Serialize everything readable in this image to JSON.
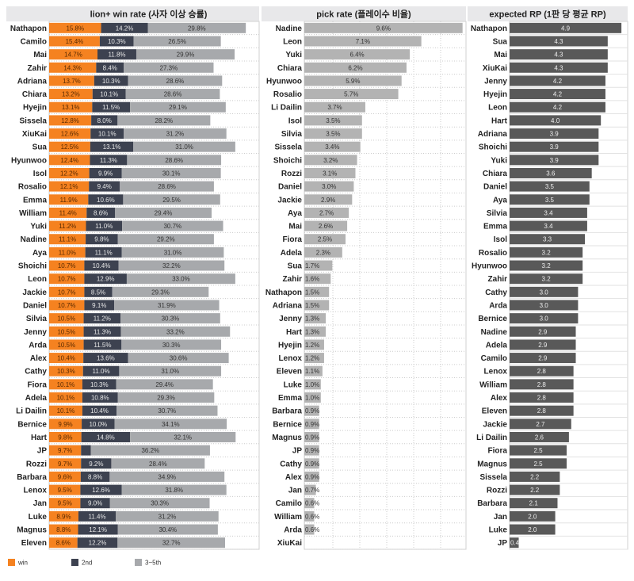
{
  "chart_data": [
    {
      "type": "bar",
      "orientation": "horizontal",
      "stacked": true,
      "title": "lion+ win rate (사자 이상 승률)",
      "categories": [
        "Nathapon",
        "Camilo",
        "Mai",
        "Zahir",
        "Adriana",
        "Chiara",
        "Hyejin",
        "Sissela",
        "XiuKai",
        "Sua",
        "Hyunwoo",
        "Isol",
        "Rosalio",
        "Emma",
        "William",
        "Yuki",
        "Nadine",
        "Aya",
        "Shoichi",
        "Leon",
        "Jackie",
        "Daniel",
        "Silvia",
        "Jenny",
        "Arda",
        "Alex",
        "Cathy",
        "Fiora",
        "Adela",
        "Li Dailin",
        "Bernice",
        "Hart",
        "JP",
        "Rozzi",
        "Barbara",
        "Lenox",
        "Jan",
        "Luke",
        "Magnus",
        "Eleven"
      ],
      "series": [
        {
          "name": "win",
          "color": "#f58220",
          "values": [
            15.8,
            15.4,
            14.7,
            14.3,
            13.7,
            13.2,
            13.1,
            12.8,
            12.6,
            12.5,
            12.4,
            12.2,
            12.1,
            11.9,
            11.4,
            11.2,
            11.1,
            11.0,
            10.7,
            10.7,
            10.7,
            10.7,
            10.5,
            10.5,
            10.5,
            10.4,
            10.3,
            10.1,
            10.1,
            10.1,
            9.9,
            9.8,
            9.7,
            9.7,
            9.6,
            9.5,
            9.5,
            8.9,
            8.8,
            8.6
          ]
        },
        {
          "name": "2nd",
          "color": "#3d4250",
          "values": [
            14.2,
            10.3,
            11.8,
            8.4,
            10.3,
            10.1,
            11.5,
            8.0,
            10.1,
            13.1,
            11.3,
            9.9,
            9.4,
            10.6,
            8.6,
            11.0,
            9.8,
            11.1,
            10.4,
            12.9,
            8.5,
            9.1,
            11.2,
            11.3,
            11.5,
            13.6,
            11.0,
            10.3,
            10.8,
            10.4,
            10.0,
            14.8,
            3.0,
            9.2,
            8.8,
            12.6,
            9.0,
            11.4,
            12.1,
            12.2
          ]
        },
        {
          "name": "3~5th",
          "color": "#a7a9ac",
          "values": [
            29.8,
            26.5,
            29.9,
            27.3,
            28.6,
            28.6,
            29.1,
            28.2,
            31.2,
            31.0,
            28.6,
            30.1,
            28.6,
            29.5,
            29.4,
            30.7,
            29.2,
            31.0,
            32.2,
            33.0,
            29.3,
            31.9,
            30.3,
            33.2,
            30.3,
            30.6,
            31.0,
            29.4,
            29.3,
            30.7,
            34.1,
            32.1,
            36.2,
            28.4,
            34.9,
            31.8,
            30.3,
            31.2,
            30.4,
            32.7
          ]
        }
      ],
      "unlabeled_points": [
        {
          "category": "JP",
          "series": "2nd"
        }
      ],
      "legend": "bottom-left"
    },
    {
      "type": "bar",
      "orientation": "horizontal",
      "title": "pick rate (플레이수 비율)",
      "color": "#b3b3b3",
      "categories": [
        "Nadine",
        "Leon",
        "Yuki",
        "Chiara",
        "Hyunwoo",
        "Rosalio",
        "Li Dailin",
        "Isol",
        "Silvia",
        "Sissela",
        "Shoichi",
        "Rozzi",
        "Daniel",
        "Jackie",
        "Aya",
        "Mai",
        "Fiora",
        "Adela",
        "Sua",
        "Zahir",
        "Nathapon",
        "Adriana",
        "Jenny",
        "Hart",
        "Hyejin",
        "Lenox",
        "Eleven",
        "Luke",
        "Emma",
        "Barbara",
        "Bernice",
        "Magnus",
        "JP",
        "Cathy",
        "Alex",
        "Jan",
        "Camilo",
        "William",
        "Arda",
        "XiuKai"
      ],
      "values": [
        9.6,
        7.1,
        6.4,
        6.2,
        5.9,
        5.7,
        3.7,
        3.5,
        3.5,
        3.4,
        3.2,
        3.1,
        3.0,
        2.9,
        2.7,
        2.6,
        2.5,
        2.3,
        1.7,
        1.6,
        1.5,
        1.5,
        1.3,
        1.3,
        1.2,
        1.2,
        1.1,
        1.0,
        1.0,
        0.9,
        0.9,
        0.9,
        0.9,
        0.9,
        0.9,
        0.7,
        0.6,
        0.6,
        0.6,
        null
      ],
      "grid": true
    },
    {
      "type": "bar",
      "orientation": "horizontal",
      "title": "expected RP (1판 당 평균 RP)",
      "color": "#595959",
      "categories": [
        "Nathapon",
        "Sua",
        "Mai",
        "XiuKai",
        "Jenny",
        "Hyejin",
        "Leon",
        "Hart",
        "Adriana",
        "Shoichi",
        "Yuki",
        "Chiara",
        "Daniel",
        "Aya",
        "Silvia",
        "Emma",
        "Isol",
        "Rosalio",
        "Hyunwoo",
        "Zahir",
        "Cathy",
        "Arda",
        "Bernice",
        "Nadine",
        "Adela",
        "Camilo",
        "Lenox",
        "William",
        "Alex",
        "Eleven",
        "Jackie",
        "Li Dailin",
        "Fiora",
        "Magnus",
        "Sissela",
        "Rozzi",
        "Barbara",
        "Jan",
        "Luke",
        "JP"
      ],
      "values": [
        4.9,
        4.3,
        4.3,
        4.3,
        4.2,
        4.2,
        4.2,
        4.0,
        3.9,
        3.9,
        3.9,
        3.6,
        3.5,
        3.5,
        3.4,
        3.4,
        3.3,
        3.2,
        3.2,
        3.2,
        3.0,
        3.0,
        3.0,
        2.9,
        2.9,
        2.9,
        2.8,
        2.8,
        2.8,
        2.8,
        2.7,
        2.6,
        2.5,
        2.5,
        2.2,
        2.2,
        2.1,
        2.0,
        2.0,
        0.4
      ]
    }
  ]
}
